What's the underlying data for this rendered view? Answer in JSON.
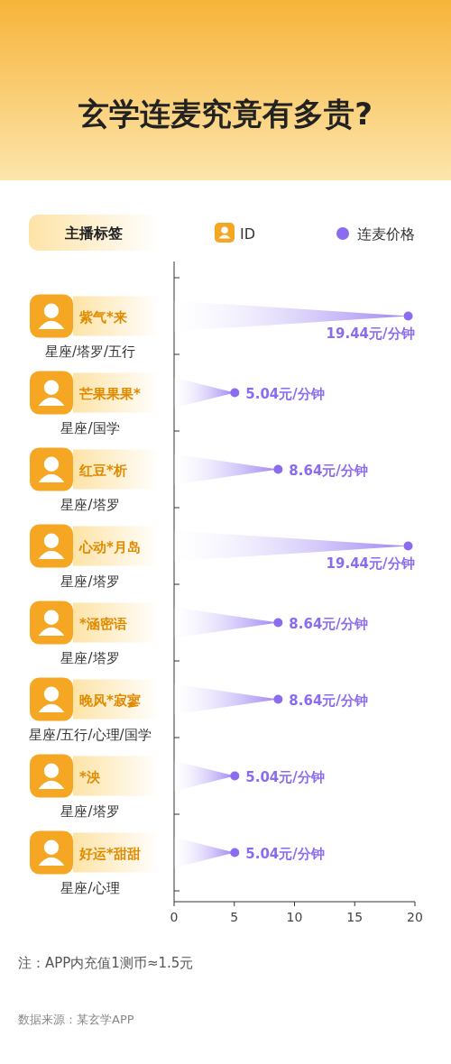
{
  "chart_data": {
    "type": "lollipop",
    "orientation": "horizontal",
    "title": "玄学连麦究竟有多贵?",
    "ylabel": "主播标签",
    "categories": [
      "紫气*来",
      "芒果果果*",
      "红豆*析",
      "心动*月岛",
      "*涵密语",
      "晚风*寂寥",
      "*泱",
      "好运*甜甜"
    ],
    "series": [
      {
        "name": "连麦价格",
        "color": "#8b6cf0",
        "values": [
          19.44,
          5.04,
          8.64,
          19.44,
          8.64,
          8.64,
          5.04,
          5.04
        ],
        "value_labels": [
          "19.44元/分钟",
          "5.04元/分钟",
          "8.64元/分钟",
          "19.44元/分钟",
          "8.64元/分钟",
          "8.64元/分钟",
          "5.04元/分钟",
          "5.04元/分钟"
        ]
      }
    ],
    "xlim": [
      0,
      20
    ],
    "xticks": [
      0,
      5,
      10,
      15,
      20
    ],
    "legend": "top right",
    "annotations": [
      "星座/塔罗/五行",
      "星座/国学",
      "星座/塔罗",
      "星座/塔罗",
      "星座/塔罗",
      "星座/五行/心理/国学",
      "星座/塔罗",
      "星座/心理",
      "ID",
      "注：APP内充值1测币≈1.5元",
      "数据来源：某玄学APP"
    ]
  }
}
